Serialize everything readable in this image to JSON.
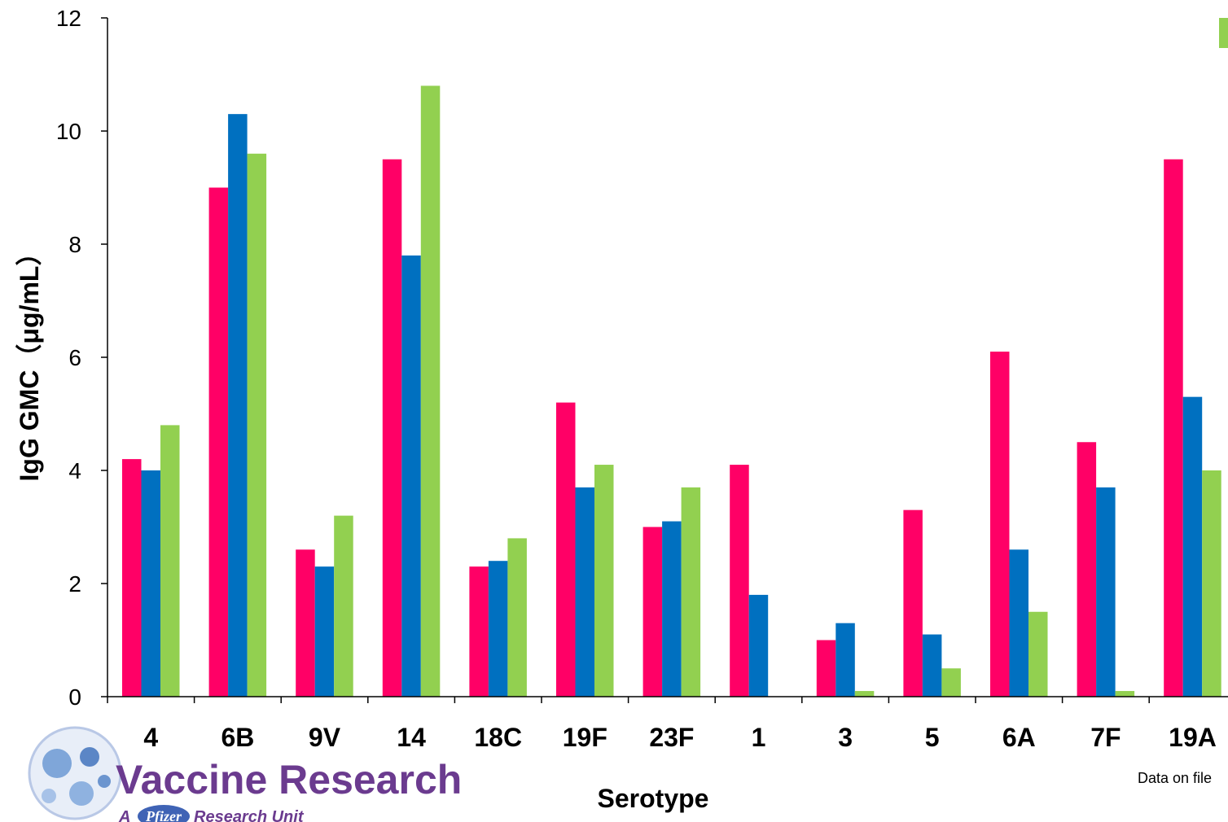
{
  "chart_data": {
    "type": "bar",
    "categories": [
      "4",
      "6B",
      "9V",
      "14",
      "18C",
      "19F",
      "23F",
      "1",
      "3",
      "5",
      "6A",
      "7F",
      "19A"
    ],
    "series": [
      {
        "color": "#ff0066",
        "values": [
          4.2,
          9.0,
          2.6,
          9.5,
          2.3,
          5.2,
          3.0,
          4.1,
          1.0,
          3.3,
          6.1,
          4.5,
          9.5
        ]
      },
      {
        "color": "#0070c0",
        "values": [
          4.0,
          10.3,
          2.3,
          7.8,
          2.4,
          3.7,
          3.1,
          1.8,
          1.3,
          1.1,
          2.6,
          3.7,
          5.3
        ]
      },
      {
        "color": "#92d050",
        "values": [
          4.8,
          9.6,
          3.2,
          10.8,
          2.8,
          4.1,
          3.7,
          0,
          0.1,
          0.5,
          1.5,
          0.1,
          4.0
        ]
      }
    ],
    "ylabel": "IgG  GMC（μg/mL）",
    "xlabel": "Serotype",
    "ylim": [
      0,
      12
    ],
    "yticks": [
      "0",
      "2",
      "4",
      "6",
      "8",
      "10",
      "12"
    ],
    "grid": false
  },
  "logo": {
    "title": "Vaccine Research",
    "prefix": "A",
    "brand": "Pfizer",
    "suffix": "Research Unit"
  },
  "footnote": "Data on file"
}
